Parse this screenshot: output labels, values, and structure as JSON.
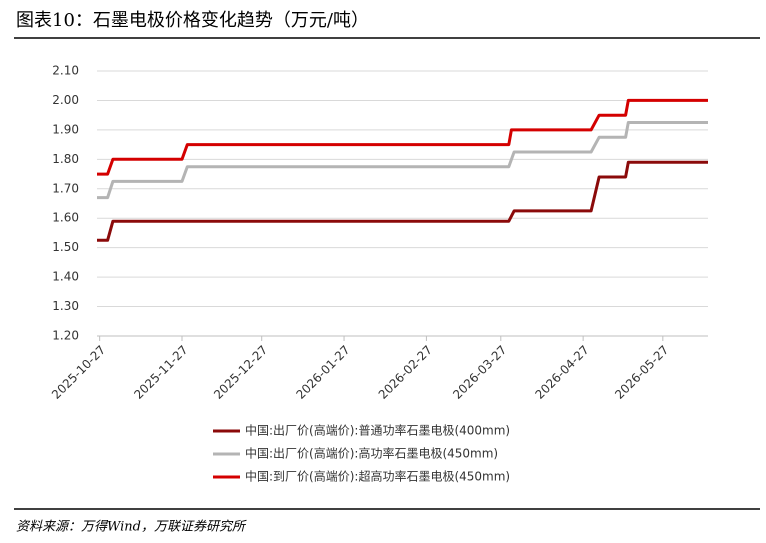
{
  "chart_data": {
    "type": "line",
    "title": "图表10：石墨电极价格变化趋势（万元/吨）",
    "source": "资料来源：万得Wind，万联证券研究所",
    "xlim": [
      "2025-10-26",
      "2026-06-13"
    ],
    "xticks": [
      "2025-10-27",
      "2025-11-27",
      "2025-12-27",
      "2026-01-27",
      "2026-02-27",
      "2026-03-27",
      "2026-04-27",
      "2026-05-27"
    ],
    "ylim": [
      1.2,
      2.1
    ],
    "yticks": [
      {
        "value": 1.2,
        "label": "1.20"
      },
      {
        "value": 1.3,
        "label": "1.30"
      },
      {
        "value": 1.4,
        "label": "1.40"
      },
      {
        "value": 1.5,
        "label": "1.50"
      },
      {
        "value": 1.6,
        "label": "1.60"
      },
      {
        "value": 1.7,
        "label": "1.70"
      },
      {
        "value": 1.8,
        "label": "1.80"
      },
      {
        "value": 1.9,
        "label": "1.90"
      },
      {
        "value": 2.0,
        "label": "2.00"
      },
      {
        "value": 2.1,
        "label": "2.10"
      }
    ],
    "grid": true,
    "legend": "bottom",
    "series": [
      {
        "name": "中国:出厂价(高端价):普通功率石墨电极(400mm)",
        "color": "#8b0a0a",
        "x": [
          "2025-10-26",
          "2025-10-30",
          "2025-11-01",
          "2026-03-30",
          "2026-04-01",
          "2026-04-30",
          "2026-05-03",
          "2026-05-13",
          "2026-05-14",
          "2026-06-13"
        ],
        "values": [
          1.525,
          1.525,
          1.59,
          1.59,
          1.625,
          1.625,
          1.74,
          1.74,
          1.79,
          1.79
        ]
      },
      {
        "name": "中国:出厂价(高端价):高功率石墨电极(450mm)",
        "color": "#b4b4b4",
        "x": [
          "2025-10-26",
          "2025-10-30",
          "2025-11-01",
          "2025-11-27",
          "2025-11-29",
          "2026-03-30",
          "2026-04-01",
          "2026-04-30",
          "2026-05-03",
          "2026-05-13",
          "2026-05-14",
          "2026-06-13"
        ],
        "values": [
          1.67,
          1.67,
          1.725,
          1.725,
          1.775,
          1.775,
          1.825,
          1.825,
          1.875,
          1.875,
          1.925,
          1.925
        ]
      },
      {
        "name": "中国:到厂价(高端价):超高功率石墨电极(450mm)",
        "color": "#d40000",
        "x": [
          "2025-10-26",
          "2025-10-30",
          "2025-11-01",
          "2025-11-27",
          "2025-11-29",
          "2026-03-30",
          "2026-03-31",
          "2026-04-30",
          "2026-05-03",
          "2026-05-13",
          "2026-05-14",
          "2026-06-13"
        ],
        "values": [
          1.75,
          1.75,
          1.8,
          1.8,
          1.85,
          1.85,
          1.9,
          1.9,
          1.95,
          1.95,
          2.0,
          2.0
        ]
      }
    ]
  }
}
